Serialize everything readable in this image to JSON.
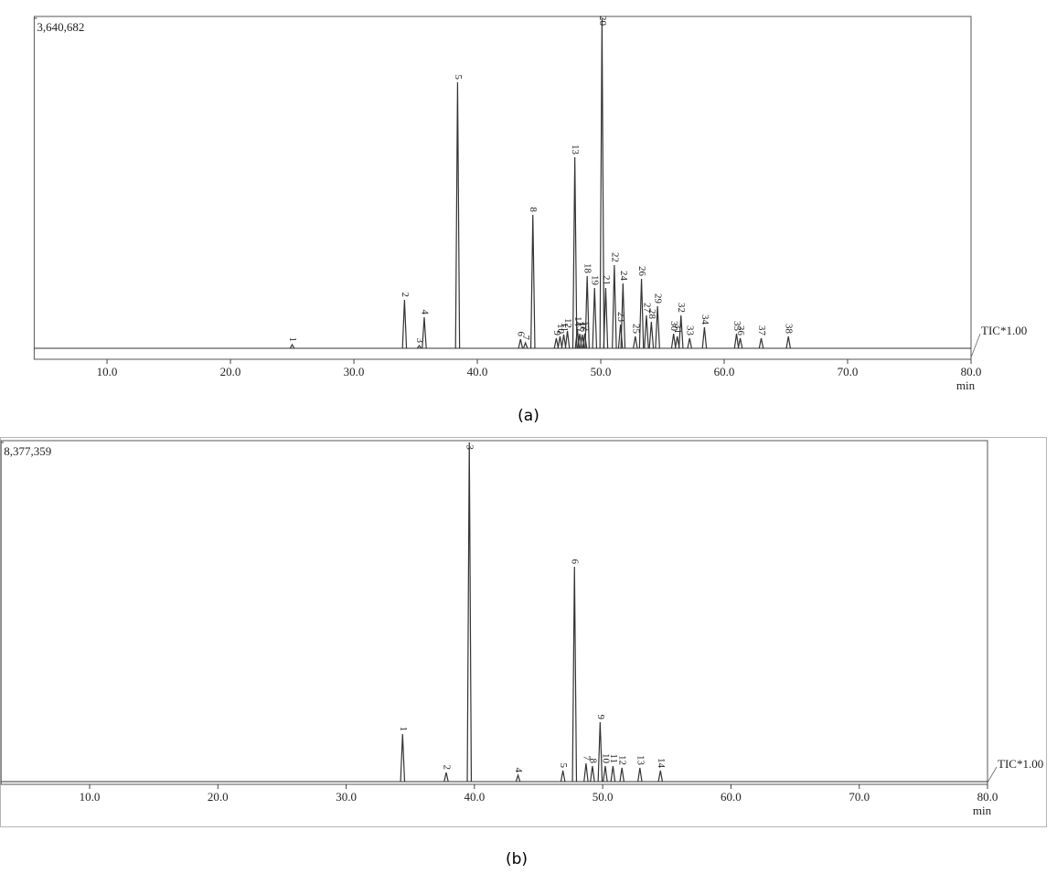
{
  "chart_data": [
    {
      "type": "chromatogram",
      "caption": "(a)",
      "x_label": "min",
      "annotation": "TIC*1.00",
      "color": "#333333",
      "xlim": [
        4.1,
        80
      ],
      "xticks": [
        {
          "value": 10,
          "label": "10.0"
        },
        {
          "value": 20,
          "label": "20.0"
        },
        {
          "value": 30,
          "label": "30.0"
        },
        {
          "value": 40,
          "label": "40.0"
        },
        {
          "value": 50,
          "label": "50.0"
        },
        {
          "value": 60,
          "label": "60.0"
        },
        {
          "value": 70,
          "label": "70.0"
        },
        {
          "value": 80,
          "label": "80.0"
        }
      ],
      "ylim": [
        0,
        3640682
      ],
      "yticks": [
        {
          "value": 3640682,
          "label": "3,640,682"
        }
      ],
      "baseline": 117000,
      "peak_labels": [
        "1",
        "2",
        "3",
        "4",
        "5",
        "6",
        "7",
        "8",
        "9",
        "10",
        "11",
        "12",
        "13",
        "14",
        "15",
        "16",
        "17",
        "18",
        "19",
        "20",
        "21",
        "22",
        "23",
        "24",
        "25",
        "26",
        "27",
        "28",
        "29",
        "30",
        "31",
        "32",
        "33",
        "34",
        "35",
        "36",
        "37",
        "38"
      ],
      "x": [
        25.0,
        34.1,
        35.3,
        35.7,
        38.4,
        43.5,
        43.9,
        44.5,
        46.4,
        46.7,
        47.0,
        47.3,
        47.9,
        48.1,
        48.3,
        48.5,
        48.7,
        48.9,
        49.5,
        50.1,
        50.4,
        51.1,
        51.6,
        51.8,
        52.8,
        53.3,
        53.7,
        54.1,
        54.6,
        55.9,
        56.2,
        56.5,
        57.2,
        58.4,
        61.0,
        61.3,
        63.0,
        65.2
      ],
      "values": [
        156000,
        634000,
        146000,
        449000,
        2957000,
        215000,
        176000,
        1542000,
        224000,
        244000,
        264000,
        303000,
        2157000,
        322000,
        273000,
        264000,
        273000,
        888000,
        761000,
        3640000,
        761000,
        1005000,
        371000,
        810000,
        244000,
        859000,
        468000,
        400000,
        566000,
        273000,
        244000,
        468000,
        224000,
        342000,
        273000,
        224000,
        224000,
        244000
      ]
    },
    {
      "type": "chromatogram",
      "caption": "(b)",
      "x_label": "min",
      "annotation": "TIC*1.00",
      "color": "#333333",
      "xlim": [
        3.1,
        80
      ],
      "xticks": [
        {
          "value": 10,
          "label": "10.0"
        },
        {
          "value": 20,
          "label": "20.0"
        },
        {
          "value": 30,
          "label": "30.0"
        },
        {
          "value": 40,
          "label": "40.0"
        },
        {
          "value": 50,
          "label": "50.0"
        },
        {
          "value": 60,
          "label": "60.0"
        },
        {
          "value": 70,
          "label": "70.0"
        },
        {
          "value": 80,
          "label": "80.0"
        }
      ],
      "ylim": [
        0,
        8377359
      ],
      "yticks": [
        {
          "value": 8377359,
          "label": "8,377,359"
        }
      ],
      "baseline": 67000,
      "peak_labels": [
        "1",
        "2",
        "3",
        "4",
        "5",
        "6",
        "7",
        "8",
        "9",
        "10",
        "11",
        "12",
        "13",
        "14"
      ],
      "x": [
        34.4,
        37.8,
        39.6,
        43.4,
        46.9,
        47.8,
        48.7,
        49.2,
        49.8,
        50.2,
        50.8,
        51.5,
        52.9,
        54.5
      ],
      "values": [
        1232000,
        291000,
        8377000,
        224000,
        336000,
        5331000,
        515000,
        448000,
        1523000,
        448000,
        448000,
        403000,
        403000,
        336000
      ]
    }
  ]
}
